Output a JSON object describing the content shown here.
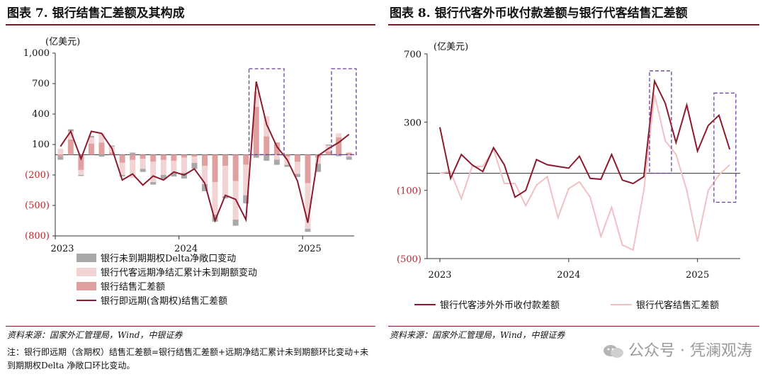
{
  "left": {
    "title": "图表 7. 银行结售汇差额及其构成",
    "source": "资料来源：国家外汇管理局，Wind，中银证券",
    "note": "注：银行即远期（含期权）结售汇差额=银行结售汇差额+远期净结汇累计未到期额环比变动+未到期期权Delta 净敞口环比变动。",
    "chart_data": {
      "type": "bar",
      "unit_label": "(亿美元)",
      "ylim": [
        -800,
        1000
      ],
      "yticks": [
        1000,
        700,
        400,
        100,
        -200,
        -500,
        -800
      ],
      "ytick_labels": [
        "1,000",
        "700",
        "400",
        "100",
        "(200)",
        "(500)",
        "(800)"
      ],
      "xtick_labels": [
        "2023",
        "2024",
        "2025"
      ],
      "xtick_index": [
        0,
        12,
        24
      ],
      "n_months": 29,
      "series": [
        {
          "name": "银行未到期期权Delta净敞口变动",
          "kind": "bar",
          "color": "#a8a8a8",
          "values": [
            -30,
            20,
            -10,
            15,
            -20,
            10,
            -15,
            20,
            -30,
            -25,
            -40,
            -35,
            -55,
            -60,
            -70,
            -70,
            -20,
            -60,
            -80,
            -30,
            -60,
            -50,
            -20,
            -30,
            -30,
            -80,
            10,
            -15,
            -30
          ]
        },
        {
          "name": "银行代客远期净结汇累计未到期额变动",
          "kind": "bar",
          "color": "#f2d3d3",
          "values": [
            60,
            80,
            -50,
            60,
            90,
            60,
            -120,
            -180,
            -100,
            -200,
            -150,
            -120,
            -150,
            -60,
            -180,
            -320,
            -300,
            -380,
            -300,
            150,
            200,
            -50,
            -80,
            -120,
            -450,
            -60,
            60,
            40,
            -20
          ]
        },
        {
          "name": "银行结售汇差额",
          "kind": "bar",
          "color": "#e0a0a0",
          "values": [
            -20,
            150,
            -150,
            110,
            120,
            20,
            -80,
            -50,
            -40,
            -70,
            -50,
            -60,
            -30,
            -20,
            -110,
            -270,
            -110,
            -260,
            -100,
            470,
            180,
            120,
            -20,
            -70,
            -280,
            -30,
            30,
            170,
            20
          ]
        },
        {
          "name": "银行即远期(含期权)结售汇差额",
          "kind": "line",
          "color": "#8b1a2e",
          "values": [
            80,
            230,
            -40,
            230,
            210,
            60,
            -250,
            -190,
            -300,
            -210,
            -250,
            -170,
            -200,
            -140,
            -280,
            -650,
            -400,
            -440,
            -640,
            720,
            300,
            80,
            -50,
            -260,
            -670,
            -10,
            60,
            120,
            200
          ]
        }
      ],
      "dashed_boxes": [
        [
          19,
          21
        ],
        [
          27,
          28
        ]
      ]
    }
  },
  "right": {
    "title": "图表 8. 银行代客外币收付款差额与银行代客结售汇差额",
    "source": "资料来源：国家外汇管理局，Wind，中银证券",
    "chart_data": {
      "type": "line",
      "unit_label": "(亿美元)",
      "ylim": [
        -500,
        700
      ],
      "yticks": [
        700,
        300,
        -100,
        -500
      ],
      "ytick_labels": [
        "700",
        "300",
        "(100)",
        "(500)"
      ],
      "xtick_labels": [
        "2023",
        "2024",
        "2025"
      ],
      "xtick_index": [
        0,
        12,
        24
      ],
      "n_months": 29,
      "series": [
        {
          "name": "银行代客涉外外币收付款差额",
          "color": "#8b1a2e",
          "values": [
            270,
            -30,
            110,
            50,
            10,
            150,
            50,
            -140,
            -100,
            80,
            50,
            40,
            30,
            100,
            -30,
            -35,
            110,
            -40,
            -60,
            -20,
            540,
            410,
            180,
            400,
            130,
            280,
            340,
            140,
            null
          ]
        },
        {
          "name": "银行代客结售汇差额",
          "color": "#f0c0c4",
          "values": [
            0,
            10,
            -150,
            40,
            40,
            140,
            -60,
            -60,
            -190,
            -70,
            -20,
            -260,
            -90,
            -50,
            -140,
            -370,
            -200,
            -420,
            -450,
            -100,
            460,
            190,
            110,
            -100,
            -400,
            -100,
            -10,
            50,
            null
          ]
        }
      ],
      "dashed_boxes": [
        [
          20,
          21
        ],
        [
          26,
          27
        ]
      ]
    }
  },
  "watermark": "公众号 · 凭澜观涛"
}
